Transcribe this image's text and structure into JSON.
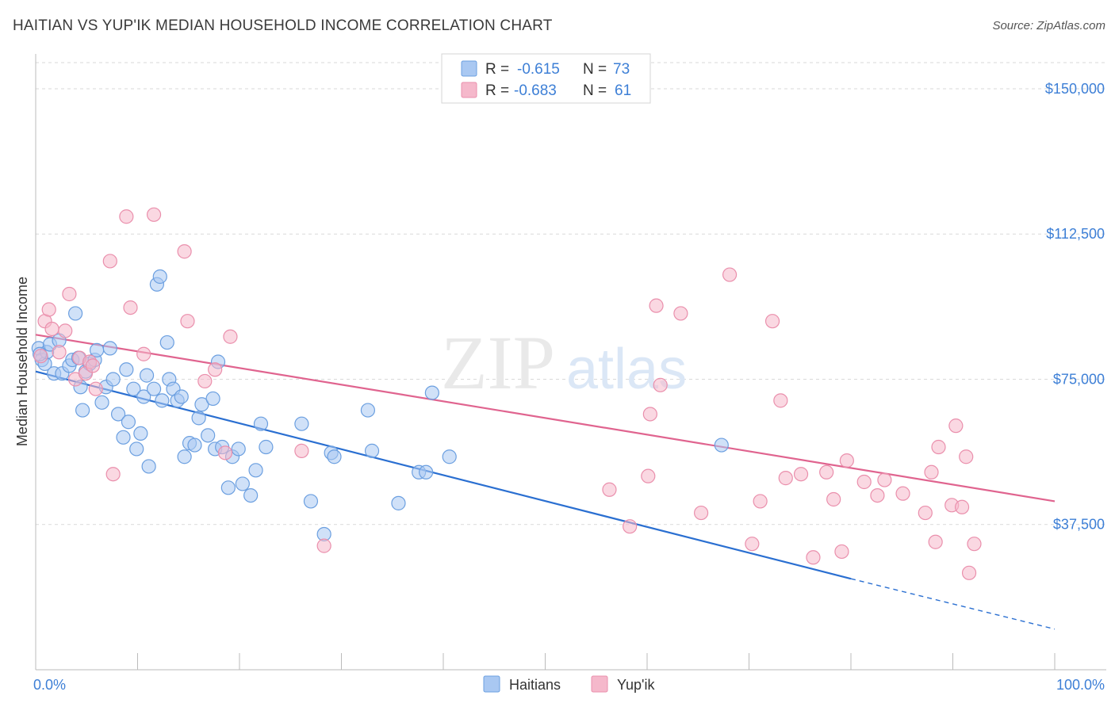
{
  "title": "HAITIAN VS YUP'IK MEDIAN HOUSEHOLD INCOME CORRELATION CHART",
  "source": "Source: ZipAtlas.com",
  "watermark": {
    "zip": "ZIP",
    "atlas": "atlas"
  },
  "colors": {
    "haitians_fill": "#a9c8f2",
    "haitians_stroke": "#6b9fe0",
    "haitians_line": "#2a6fd1",
    "yupik_fill": "#f5b8cb",
    "yupik_stroke": "#ea8fac",
    "yupik_line": "#e0648f",
    "tick_text": "#3d7fd6",
    "grid": "#d9d9d9"
  },
  "stats_box": {
    "rows": [
      {
        "r_label": "R = ",
        "r_value": "-0.615",
        "n_label": "N = ",
        "n_value": "73"
      },
      {
        "r_label": "R = ",
        "r_value": "-0.683",
        "n_label": "N = ",
        "n_value": "61"
      }
    ]
  },
  "chart_data": {
    "type": "scatter",
    "ylabel": "Median Household Income",
    "xlim": [
      0,
      100
    ],
    "ylim": [
      0,
      150000
    ],
    "y_ticks": [
      {
        "value": 37500,
        "label": "$37,500"
      },
      {
        "value": 75000,
        "label": "$75,000"
      },
      {
        "value": 112500,
        "label": "$112,500"
      },
      {
        "value": 150000,
        "label": "$150,000"
      }
    ],
    "x_tick_labels": [
      {
        "value": 0,
        "label": "0.0%"
      },
      {
        "value": 100,
        "label": "100.0%"
      }
    ],
    "legend_position": "bottom-center",
    "grid": true,
    "series": [
      {
        "name": "Haitians",
        "trend": {
          "x0": 0,
          "y0": 77000,
          "x1": 80,
          "y1": 23500,
          "dashed_to_x": 100,
          "dashed_to_y": 10500
        },
        "points": [
          [
            0.3,
            83000
          ],
          [
            0.6,
            80000
          ],
          [
            0.9,
            79000
          ],
          [
            1.1,
            82000
          ],
          [
            1.4,
            84000
          ],
          [
            1.8,
            76500
          ],
          [
            2.3,
            85000
          ],
          [
            2.6,
            76500
          ],
          [
            3.3,
            78500
          ],
          [
            3.6,
            80000
          ],
          [
            3.9,
            92000
          ],
          [
            4.2,
            80500
          ],
          [
            4.4,
            73000
          ],
          [
            4.6,
            67000
          ],
          [
            4.9,
            77000
          ],
          [
            5.3,
            79000
          ],
          [
            5.8,
            80000
          ],
          [
            6.0,
            82500
          ],
          [
            6.5,
            69000
          ],
          [
            6.9,
            73000
          ],
          [
            7.3,
            83000
          ],
          [
            7.6,
            75000
          ],
          [
            8.1,
            66000
          ],
          [
            8.6,
            60000
          ],
          [
            8.9,
            77500
          ],
          [
            9.1,
            64000
          ],
          [
            9.6,
            72500
          ],
          [
            9.9,
            57000
          ],
          [
            10.3,
            61000
          ],
          [
            10.6,
            70500
          ],
          [
            10.9,
            76000
          ],
          [
            11.1,
            52500
          ],
          [
            11.6,
            72500
          ],
          [
            11.9,
            99500
          ],
          [
            12.2,
            101500
          ],
          [
            12.4,
            69500
          ],
          [
            12.9,
            84500
          ],
          [
            13.1,
            75000
          ],
          [
            13.5,
            72500
          ],
          [
            13.9,
            69500
          ],
          [
            14.3,
            70500
          ],
          [
            14.6,
            55000
          ],
          [
            15.1,
            58500
          ],
          [
            15.6,
            58000
          ],
          [
            16.0,
            65000
          ],
          [
            16.3,
            68500
          ],
          [
            16.9,
            60500
          ],
          [
            17.4,
            70000
          ],
          [
            17.6,
            57000
          ],
          [
            17.9,
            79500
          ],
          [
            18.3,
            57500
          ],
          [
            18.9,
            47000
          ],
          [
            19.3,
            55000
          ],
          [
            19.9,
            57000
          ],
          [
            20.3,
            48000
          ],
          [
            21.1,
            45000
          ],
          [
            21.6,
            51500
          ],
          [
            22.1,
            63500
          ],
          [
            22.6,
            57500
          ],
          [
            26.1,
            63500
          ],
          [
            27.0,
            43500
          ],
          [
            28.3,
            35000
          ],
          [
            29.0,
            56000
          ],
          [
            29.3,
            55000
          ],
          [
            32.6,
            67000
          ],
          [
            33.0,
            56500
          ],
          [
            35.6,
            43000
          ],
          [
            37.6,
            51000
          ],
          [
            38.3,
            51000
          ],
          [
            38.9,
            71500
          ],
          [
            40.6,
            55000
          ],
          [
            67.3,
            58000
          ],
          [
            0.4,
            81500
          ]
        ]
      },
      {
        "name": "Yup'ik",
        "trend": {
          "x0": 0,
          "y0": 86500,
          "x1": 100,
          "y1": 43500
        },
        "points": [
          [
            0.5,
            81000
          ],
          [
            0.9,
            90000
          ],
          [
            1.3,
            93000
          ],
          [
            1.6,
            88000
          ],
          [
            2.3,
            82000
          ],
          [
            2.9,
            87500
          ],
          [
            3.3,
            97000
          ],
          [
            3.9,
            75000
          ],
          [
            4.3,
            80500
          ],
          [
            4.9,
            76500
          ],
          [
            5.3,
            79500
          ],
          [
            5.6,
            78500
          ],
          [
            5.9,
            72500
          ],
          [
            7.3,
            105500
          ],
          [
            7.6,
            50500
          ],
          [
            8.9,
            117000
          ],
          [
            9.3,
            93500
          ],
          [
            10.6,
            81500
          ],
          [
            11.6,
            117500
          ],
          [
            14.6,
            108000
          ],
          [
            14.9,
            90000
          ],
          [
            16.6,
            74500
          ],
          [
            17.6,
            77500
          ],
          [
            18.6,
            56000
          ],
          [
            19.1,
            86000
          ],
          [
            26.1,
            56500
          ],
          [
            28.3,
            32000
          ],
          [
            56.3,
            46500
          ],
          [
            58.3,
            37000
          ],
          [
            60.1,
            50000
          ],
          [
            60.3,
            66000
          ],
          [
            60.9,
            94000
          ],
          [
            61.3,
            73500
          ],
          [
            63.3,
            92000
          ],
          [
            65.3,
            40500
          ],
          [
            68.1,
            102000
          ],
          [
            70.3,
            32500
          ],
          [
            71.1,
            43500
          ],
          [
            72.3,
            90000
          ],
          [
            73.1,
            69500
          ],
          [
            73.6,
            49500
          ],
          [
            75.1,
            50500
          ],
          [
            76.3,
            29000
          ],
          [
            77.6,
            51000
          ],
          [
            78.3,
            44000
          ],
          [
            79.1,
            30500
          ],
          [
            79.6,
            54000
          ],
          [
            81.3,
            48500
          ],
          [
            82.6,
            45000
          ],
          [
            83.3,
            49000
          ],
          [
            85.1,
            45500
          ],
          [
            87.3,
            40500
          ],
          [
            87.9,
            51000
          ],
          [
            88.3,
            33000
          ],
          [
            88.6,
            57500
          ],
          [
            89.9,
            42500
          ],
          [
            90.3,
            63000
          ],
          [
            90.9,
            42000
          ],
          [
            91.3,
            55000
          ],
          [
            91.6,
            25000
          ],
          [
            92.1,
            32500
          ]
        ]
      }
    ]
  }
}
